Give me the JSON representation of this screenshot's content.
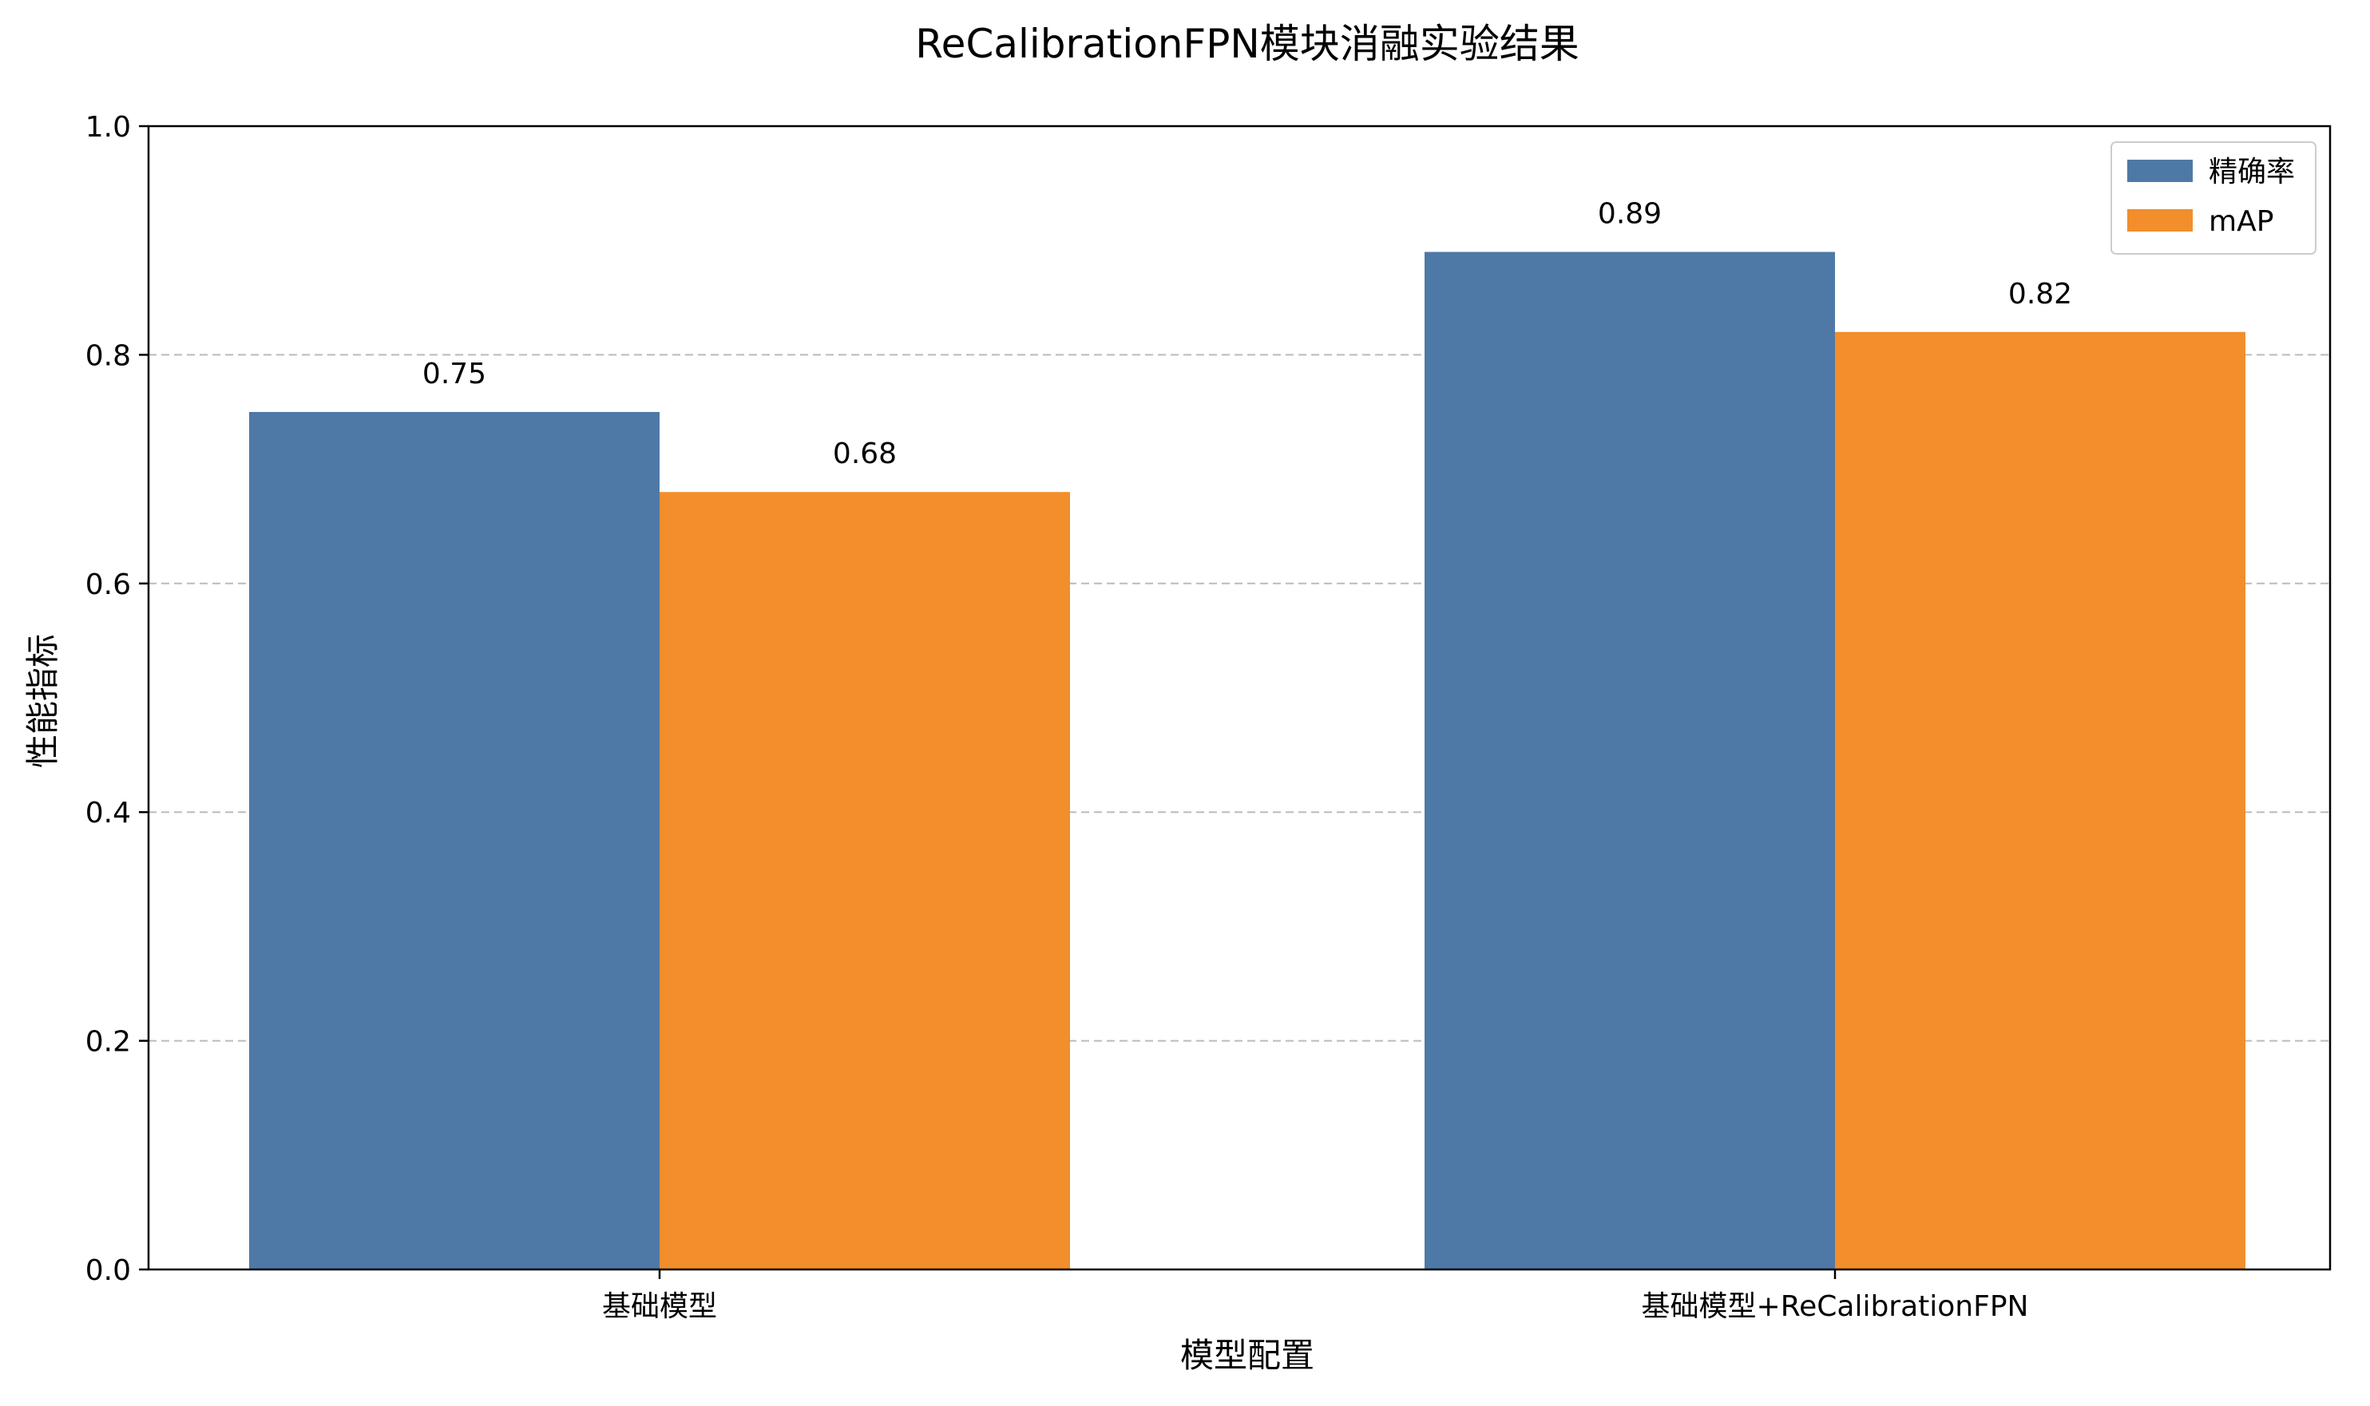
{
  "chart_data": {
    "type": "bar",
    "title": "ReCalibrationFPN模块消融实验结果",
    "xlabel": "模型配置",
    "ylabel": "性能指标",
    "categories": [
      "基础模型",
      "基础模型+ReCalibrationFPN"
    ],
    "series": [
      {
        "name": "精确率",
        "values": [
          0.75,
          0.89
        ],
        "color": "#4e79a7"
      },
      {
        "name": "mAP",
        "values": [
          0.68,
          0.82
        ],
        "color": "#f28e2b"
      }
    ],
    "data_labels": [
      [
        "0.75",
        "0.89"
      ],
      [
        "0.68",
        "0.82"
      ]
    ],
    "ylim": [
      0,
      1.0
    ],
    "yticks": [
      0.0,
      0.2,
      0.4,
      0.6,
      0.8,
      1.0
    ],
    "ytick_labels": [
      "0.0",
      "0.2",
      "0.4",
      "0.6",
      "0.8",
      "1.0"
    ],
    "grid": "y-dashed",
    "grid_color": "#bbbbbb",
    "legend_position": "top-right"
  }
}
